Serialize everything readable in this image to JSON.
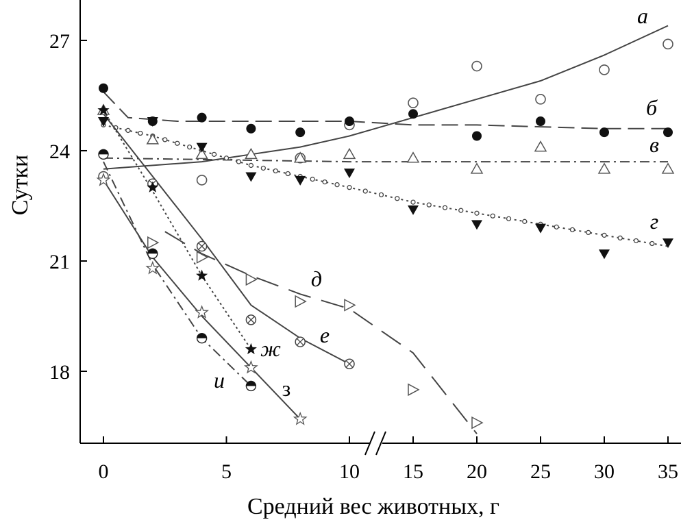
{
  "chart_data": {
    "type": "scatter",
    "xlabel": "Средний вес животных, г",
    "ylabel": "Сутки",
    "xlim": [
      0,
      35
    ],
    "ylim": [
      16.2,
      28
    ],
    "x_ticks": [
      0,
      5,
      10,
      15,
      20,
      25,
      30,
      35
    ],
    "y_ticks": [
      18,
      21,
      24,
      27
    ],
    "axis_break": "x between 10 and 15",
    "grid": false,
    "series": [
      {
        "name": "а",
        "marker": "open-circle",
        "line": "solid",
        "points": [
          [
            0,
            23.3
          ],
          [
            4,
            23.2
          ],
          [
            8,
            23.8
          ],
          [
            10,
            24.7
          ],
          [
            15,
            25.3
          ],
          [
            20,
            26.3
          ],
          [
            25,
            25.4
          ],
          [
            30,
            26.2
          ],
          [
            35,
            26.9
          ]
        ],
        "curve": [
          [
            0,
            23.5
          ],
          [
            4,
            23.7
          ],
          [
            8,
            24.1
          ],
          [
            10,
            24.4
          ],
          [
            12,
            24.6
          ],
          [
            15,
            24.9
          ],
          [
            20,
            25.4
          ],
          [
            25,
            25.9
          ],
          [
            30,
            26.6
          ],
          [
            35,
            27.4
          ]
        ]
      },
      {
        "name": "б",
        "marker": "filled-circle",
        "line": "dashed",
        "points": [
          [
            0,
            25.7
          ],
          [
            2,
            24.8
          ],
          [
            4,
            24.9
          ],
          [
            6,
            24.6
          ],
          [
            8,
            24.5
          ],
          [
            10,
            24.8
          ],
          [
            15,
            25.0
          ],
          [
            20,
            24.4
          ],
          [
            25,
            24.8
          ],
          [
            30,
            24.5
          ],
          [
            35,
            24.5
          ]
        ],
        "curve": [
          [
            0,
            25.6
          ],
          [
            1,
            24.9
          ],
          [
            3,
            24.8
          ],
          [
            10,
            24.8
          ],
          [
            15,
            24.7
          ],
          [
            20,
            24.7
          ],
          [
            25,
            24.65
          ],
          [
            30,
            24.6
          ],
          [
            35,
            24.6
          ]
        ]
      },
      {
        "name": "в",
        "marker": "open-triangle",
        "line": "dash-dot",
        "points": [
          [
            0,
            25.1
          ],
          [
            2,
            24.3
          ],
          [
            4,
            23.9
          ],
          [
            6,
            23.9
          ],
          [
            8,
            23.8
          ],
          [
            10,
            23.9
          ],
          [
            15,
            23.8
          ],
          [
            20,
            23.5
          ],
          [
            25,
            24.1
          ],
          [
            30,
            23.5
          ],
          [
            35,
            23.5
          ]
        ],
        "curve": [
          [
            0,
            23.8
          ],
          [
            10,
            23.7
          ],
          [
            15,
            23.7
          ],
          [
            35,
            23.7
          ]
        ]
      },
      {
        "name": "г",
        "marker": "filled-triangle",
        "line": "dotted-circles",
        "points": [
          [
            0,
            24.8
          ],
          [
            2,
            24.8
          ],
          [
            4,
            24.1
          ],
          [
            6,
            23.3
          ],
          [
            8,
            23.2
          ],
          [
            10,
            23.4
          ],
          [
            15,
            22.4
          ],
          [
            20,
            22.0
          ],
          [
            25,
            21.9
          ],
          [
            30,
            21.2
          ],
          [
            35,
            21.5
          ]
        ],
        "curve": [
          [
            0,
            24.7
          ],
          [
            2,
            24.4
          ],
          [
            4,
            24.0
          ],
          [
            6,
            23.6
          ],
          [
            8,
            23.3
          ],
          [
            10,
            23.0
          ],
          [
            15,
            22.6
          ],
          [
            20,
            22.3
          ],
          [
            25,
            22.0
          ],
          [
            30,
            21.7
          ],
          [
            35,
            21.4
          ]
        ]
      },
      {
        "name": "д",
        "marker": "open-right-triangle",
        "line": "long-dash",
        "points": [
          [
            2,
            21.5
          ],
          [
            4,
            21.1
          ],
          [
            6,
            20.5
          ],
          [
            8,
            19.9
          ],
          [
            10,
            19.8
          ],
          [
            15,
            17.5
          ],
          [
            20,
            16.6
          ]
        ],
        "curve": [
          [
            2.5,
            21.8
          ],
          [
            4,
            21.2
          ],
          [
            6,
            20.6
          ],
          [
            8,
            20.1
          ],
          [
            10,
            19.7
          ],
          [
            15,
            18.5
          ],
          [
            20,
            16.3
          ]
        ]
      },
      {
        "name": "е",
        "marker": "circle-cross",
        "line": "solid",
        "points": [
          [
            2,
            23.1
          ],
          [
            4,
            21.4
          ],
          [
            6,
            19.4
          ],
          [
            8,
            18.8
          ],
          [
            10,
            18.2
          ]
        ],
        "curve": [
          [
            0,
            25.0
          ],
          [
            2,
            23.3
          ],
          [
            4,
            21.6
          ],
          [
            6,
            19.8
          ],
          [
            8,
            18.9
          ],
          [
            10,
            18.2
          ]
        ]
      },
      {
        "name": "ж",
        "marker": "filled-star",
        "line": "dotted",
        "points": [
          [
            0,
            25.1
          ],
          [
            2,
            23.0
          ],
          [
            4,
            20.6
          ],
          [
            6,
            18.6
          ]
        ],
        "curve": [
          [
            0,
            25.1
          ],
          [
            2,
            22.9
          ],
          [
            4,
            20.6
          ],
          [
            6,
            18.6
          ]
        ]
      },
      {
        "name": "з",
        "marker": "open-star",
        "line": "solid",
        "points": [
          [
            0,
            23.2
          ],
          [
            2,
            20.8
          ],
          [
            4,
            19.6
          ],
          [
            6,
            18.1
          ],
          [
            8,
            16.7
          ]
        ],
        "curve": [
          [
            0,
            23.2
          ],
          [
            2,
            21.1
          ],
          [
            4,
            19.5
          ],
          [
            6,
            18.1
          ],
          [
            8,
            16.7
          ]
        ]
      },
      {
        "name": "и",
        "marker": "half-circle",
        "line": "dash-dot",
        "points": [
          [
            0,
            23.9
          ],
          [
            2,
            21.2
          ],
          [
            4,
            18.9
          ],
          [
            6,
            17.6
          ]
        ],
        "curve": [
          [
            0,
            23.7
          ],
          [
            2,
            20.9
          ],
          [
            4,
            18.9
          ],
          [
            6,
            17.6
          ]
        ]
      }
    ]
  }
}
